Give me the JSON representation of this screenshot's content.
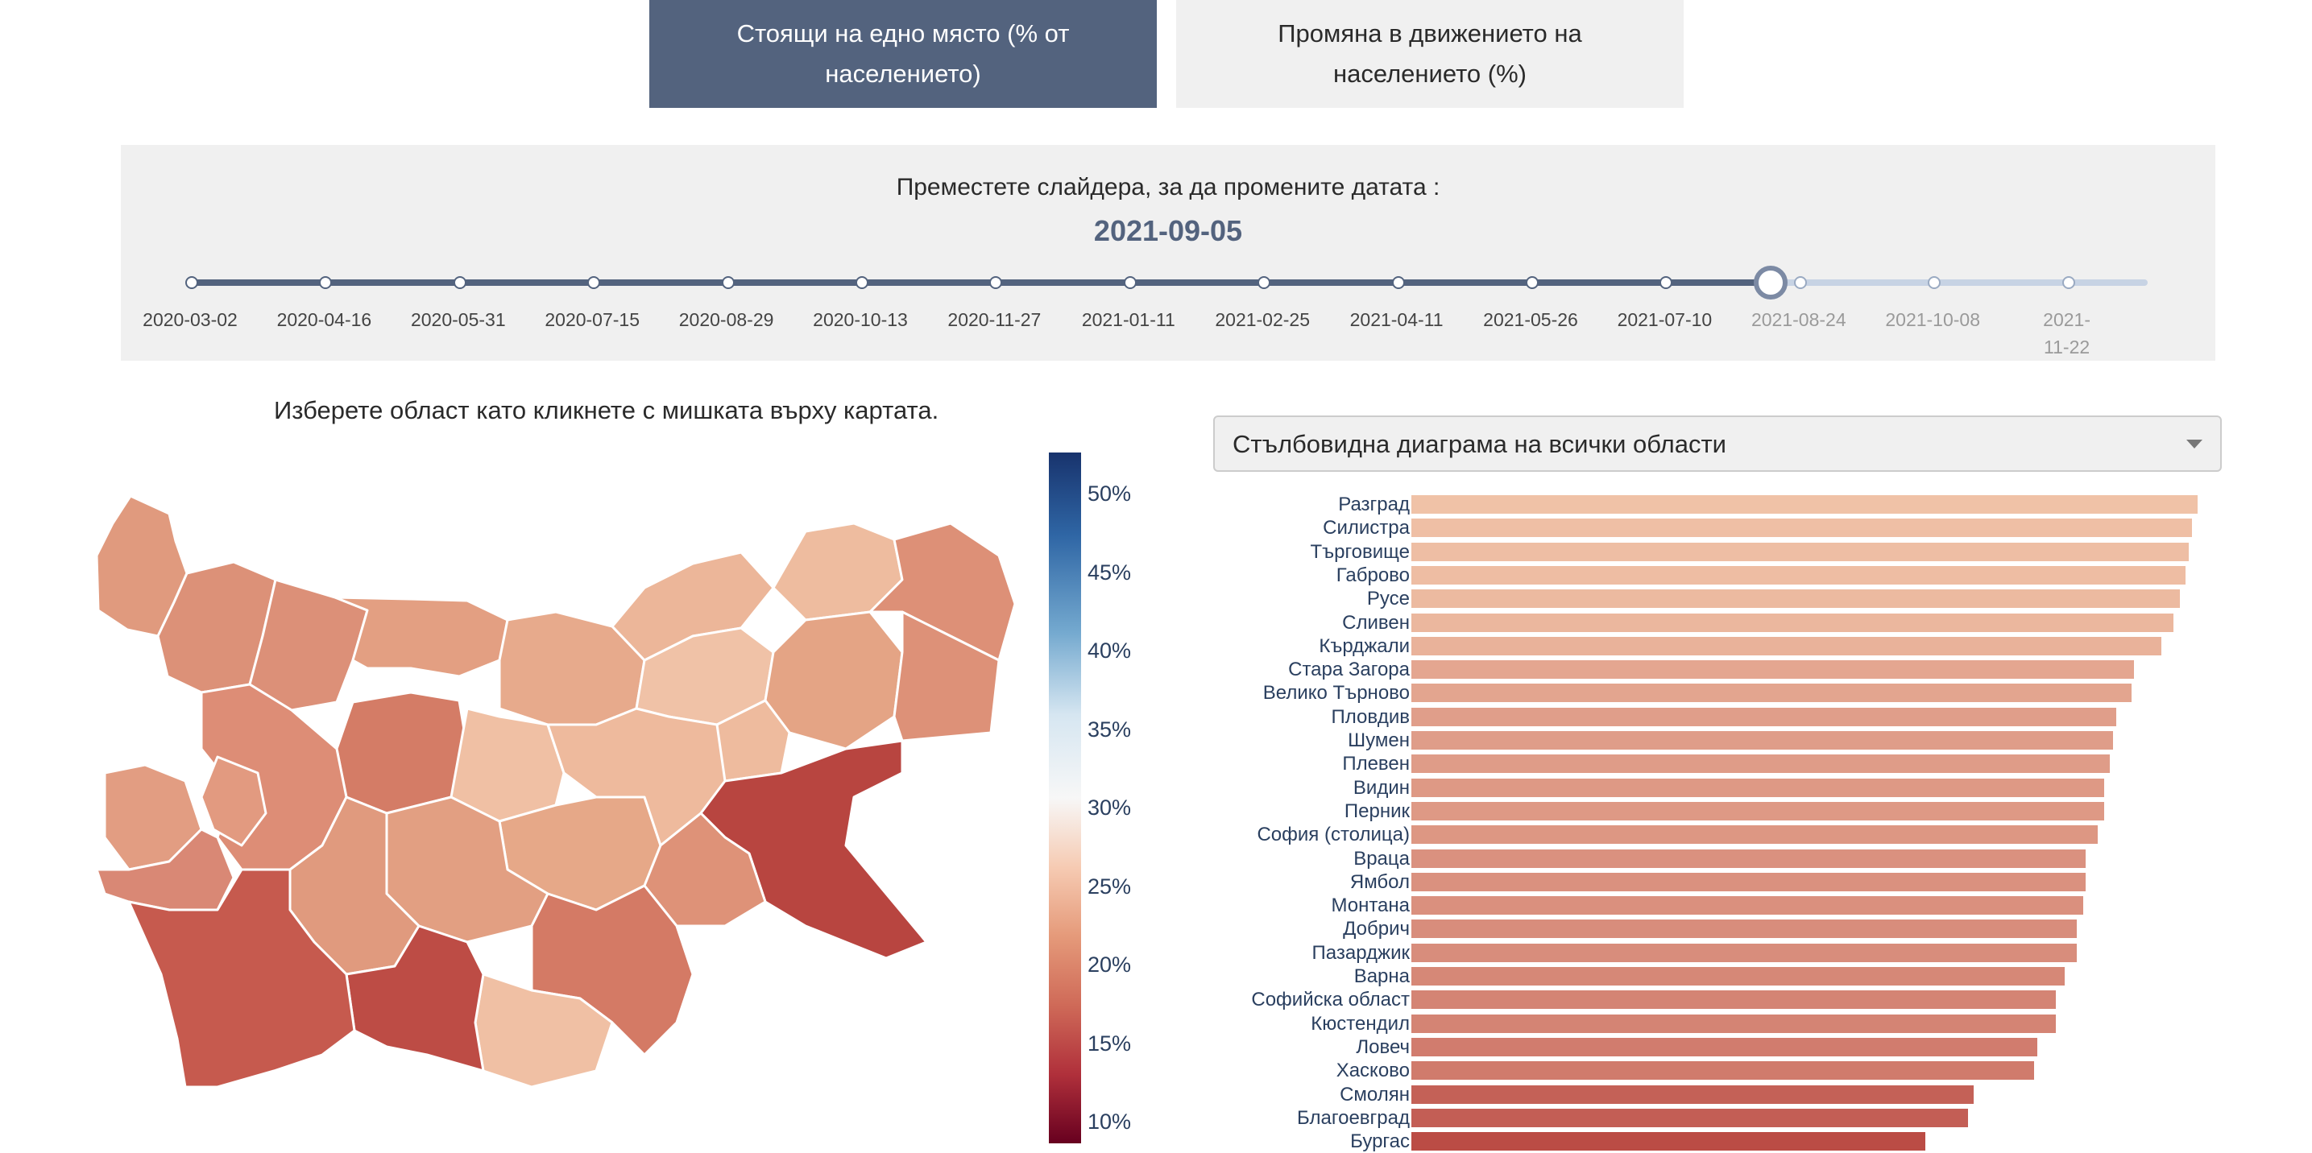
{
  "tabs": [
    {
      "label": "Стоящи на едно място (% от населението)",
      "active": true
    },
    {
      "label": "Промяна в движението на населението (%)",
      "active": false
    }
  ],
  "slider": {
    "prompt": "Преместете слайдера, за да промените датата :",
    "selected_date": "2021-09-05",
    "selected_fraction": 0.842,
    "ticks": [
      "2020-03-02",
      "2020-04-16",
      "2020-05-31",
      "2020-07-15",
      "2020-08-29",
      "2020-10-13",
      "2020-11-27",
      "2021-01-11",
      "2021-02-25",
      "2021-04-11",
      "2021-05-26",
      "2021-07-10",
      "2021-08-24",
      "2021-10-08",
      "2021-11-22"
    ]
  },
  "map": {
    "instruction": "Изберете област като кликнете с мишката върху картата.",
    "colorbar_ticks": [
      "50%",
      "45%",
      "40%",
      "35%",
      "30%",
      "25%",
      "20%",
      "15%",
      "10%"
    ],
    "colorscale": "RdBu"
  },
  "dropdown": {
    "selected": "Стълбовидна диаграма на всички области"
  },
  "chart_data": {
    "type": "bar",
    "orientation": "horizontal",
    "categories": [
      "Разград",
      "Силистра",
      "Търговище",
      "Габрово",
      "Русе",
      "Сливен",
      "Кърджали",
      "Стара Загора",
      "Велико Търново",
      "Пловдив",
      "Шумен",
      "Плевен",
      "Видин",
      "Перник",
      "София (столица)",
      "Враца",
      "Ямбол",
      "Монтана",
      "Добрич",
      "Пазарджик",
      "Варна",
      "Софийска област",
      "Кюстендил",
      "Ловеч",
      "Хасково",
      "Смолян",
      "Благоевград",
      "Бургас"
    ],
    "values": [
      26.0,
      25.8,
      25.7,
      25.6,
      25.4,
      25.2,
      24.8,
      23.9,
      23.8,
      23.3,
      23.2,
      23.1,
      22.9,
      22.9,
      22.7,
      22.3,
      22.3,
      22.2,
      22.0,
      22.0,
      21.6,
      21.3,
      21.3,
      20.7,
      20.6,
      18.6,
      18.4,
      17.0
    ],
    "xlim": [
      0,
      26.5
    ]
  },
  "colors": {
    "active_tab": "#53637e",
    "inactive_tab": "#f0f0f0",
    "accent": "#53637e"
  }
}
